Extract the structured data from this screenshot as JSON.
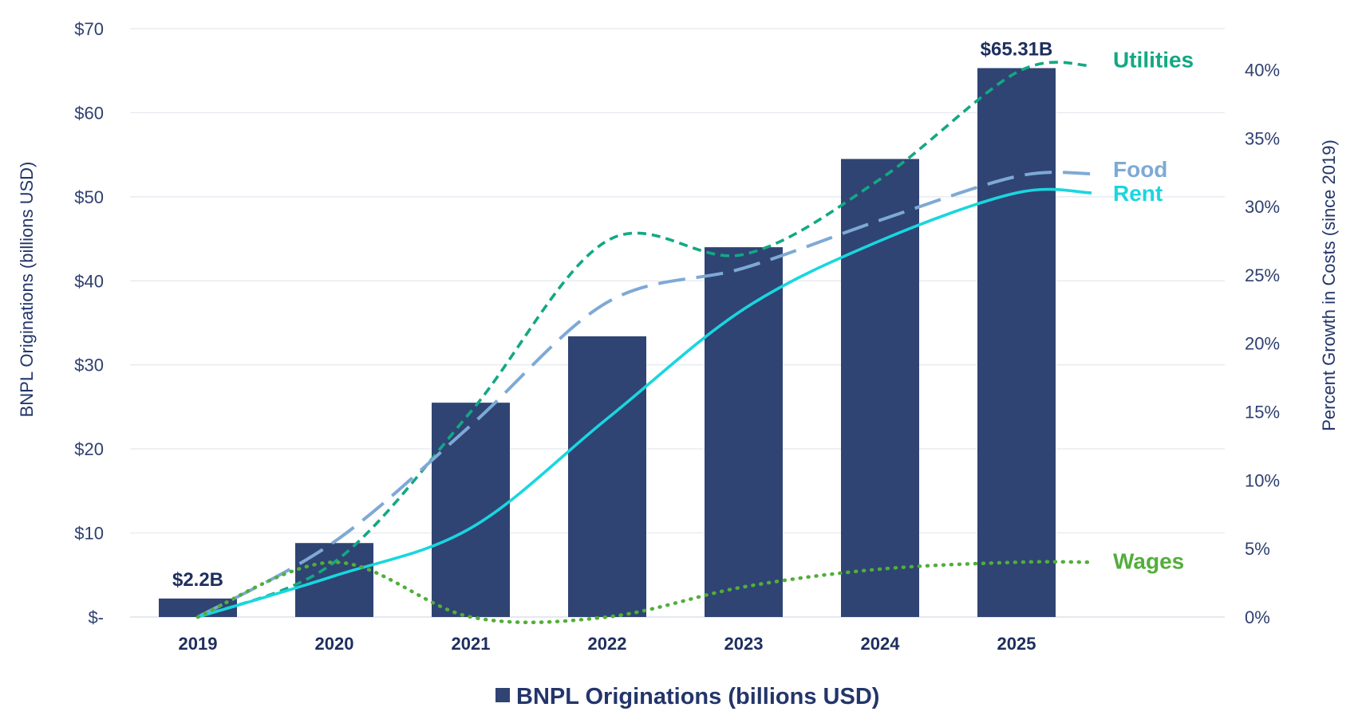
{
  "chart_data": {
    "type": "bar",
    "categories": [
      "2019",
      "2020",
      "2021",
      "2022",
      "2023",
      "2024",
      "2025"
    ],
    "left_axis": {
      "label": "BNPL Originations (billions USD)",
      "range": [
        0,
        70
      ],
      "ticks": [
        0,
        10,
        20,
        30,
        40,
        50,
        60,
        70
      ],
      "tick_labels": [
        "$-",
        "$10",
        "$20",
        "$30",
        "$40",
        "$50",
        "$60",
        "$70"
      ]
    },
    "right_axis": {
      "label": "Percent Growth in Costs (since 2019)",
      "range": [
        0,
        43
      ],
      "ticks": [
        0,
        5,
        10,
        15,
        20,
        25,
        30,
        35,
        40
      ],
      "tick_labels": [
        "0%",
        "5%",
        "10%",
        "15%",
        "20%",
        "25%",
        "30%",
        "35%",
        "40%"
      ]
    },
    "bars": {
      "name": "BNPL Originations (billions USD)",
      "values": [
        2.2,
        8.8,
        25.5,
        33.4,
        44.0,
        54.5,
        65.31
      ],
      "color": "#2f4473",
      "data_labels": [
        {
          "index": 0,
          "text": "$2.2B"
        },
        {
          "index": 6,
          "text": "$65.31B"
        }
      ]
    },
    "lines": [
      {
        "name": "Utilities",
        "color": "#13a884",
        "style": "dashed",
        "x": [
          2019,
          2020,
          2021,
          2022,
          2023,
          2024,
          2025,
          2025.55
        ],
        "values": [
          0,
          4,
          15,
          27.5,
          26.5,
          32,
          39.8,
          40.3
        ]
      },
      {
        "name": "Food",
        "color": "#7ea9d5",
        "style": "long-dash",
        "x": [
          2019,
          2020,
          2021,
          2022,
          2023,
          2024,
          2025,
          2025.55
        ],
        "values": [
          0,
          5.5,
          14,
          23,
          25.5,
          29,
          32.2,
          32.4
        ]
      },
      {
        "name": "Rent",
        "color": "#19d6df",
        "style": "solid",
        "x": [
          2019,
          2020,
          2021,
          2022,
          2023,
          2024,
          2025,
          2025.55
        ],
        "values": [
          0,
          3,
          6.5,
          14.5,
          22.5,
          27.5,
          31,
          31
        ]
      },
      {
        "name": "Wages",
        "color": "#52ae3a",
        "style": "dotted",
        "x": [
          2019,
          2020,
          2021,
          2022,
          2023,
          2024,
          2025,
          2025.55
        ],
        "values": [
          0,
          4,
          0,
          0,
          2.2,
          3.5,
          4,
          4
        ]
      }
    ],
    "legend": {
      "position": "bottom-center",
      "items": [
        "BNPL Originations (billions USD)"
      ]
    },
    "grid": true
  }
}
